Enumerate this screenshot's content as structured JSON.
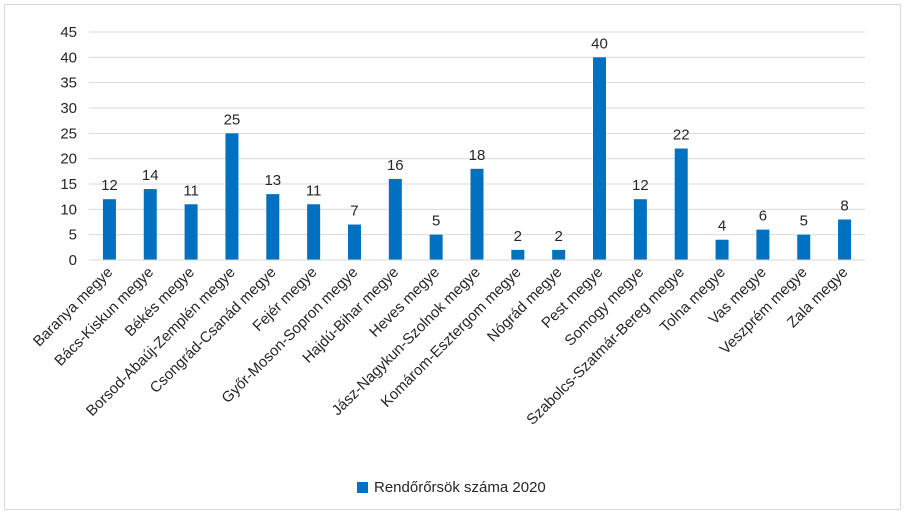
{
  "chart_data": {
    "type": "bar",
    "categories": [
      "Baranya megye",
      "Bács-Kiskun megye",
      "Békés megye",
      "Borsod-Abaúj-Zemplén megye",
      "Csongrád-Csanád megye",
      "Fejér megye",
      "Győr-Moson-Sopron megye",
      "Hajdú-Bihar megye",
      "Heves megye",
      "Jász-Nagykun-Szolnok megye",
      "Komárom-Esztergom megye",
      "Nógrád megye",
      "Pest megye",
      "Somogy megye",
      "Szabolcs-Szatmár-Bereg megye",
      "Tolna megye",
      "Vas megye",
      "Veszprém megye",
      "Zala megye"
    ],
    "series": [
      {
        "name": "Rendőrőrsök száma 2020",
        "values": [
          12,
          14,
          11,
          25,
          13,
          11,
          7,
          16,
          5,
          18,
          2,
          2,
          40,
          12,
          22,
          4,
          6,
          5,
          8
        ]
      }
    ],
    "title": "",
    "xlabel": "",
    "ylabel": "",
    "ylim": [
      0,
      45
    ],
    "yticks": [
      0,
      5,
      10,
      15,
      20,
      25,
      30,
      35,
      40,
      45
    ],
    "grid": true,
    "legend_position": "bottom",
    "bar_color": "#0070c0"
  }
}
